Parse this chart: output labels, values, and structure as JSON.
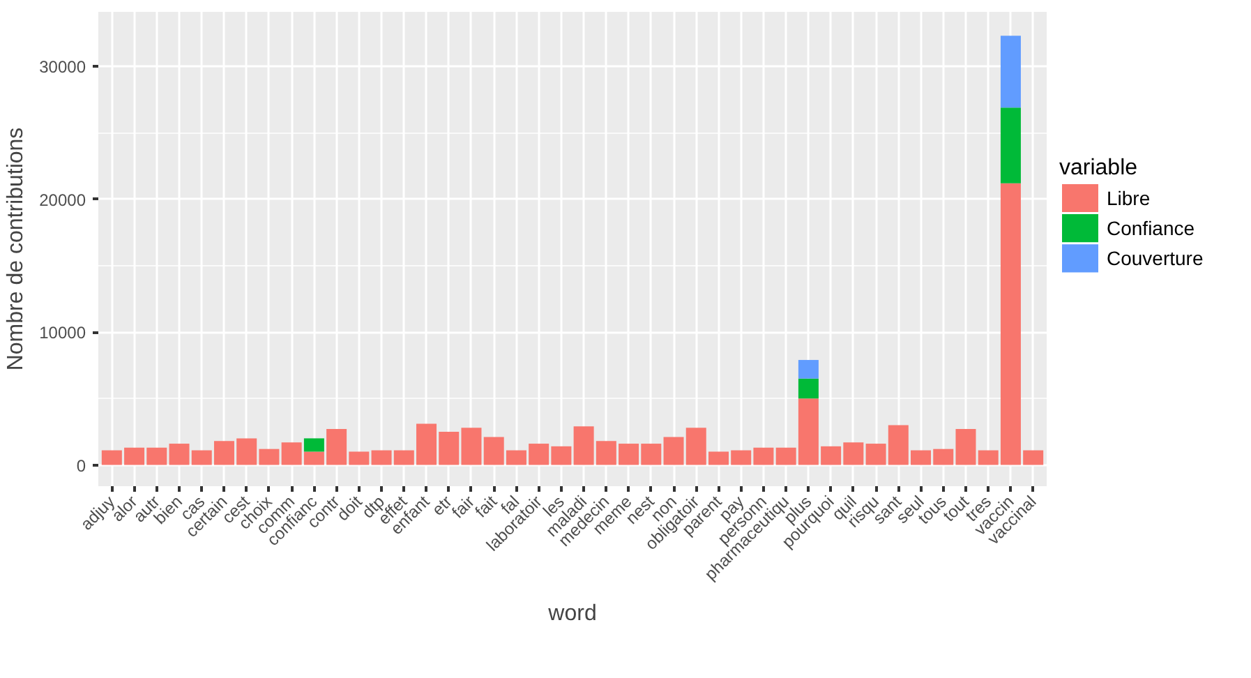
{
  "chart_data": {
    "type": "bar",
    "stacked": true,
    "xlabel": "word",
    "ylabel": "Nombre de contributions",
    "legend_title": "variable",
    "categories": [
      "adjuy",
      "alor",
      "autr",
      "bien",
      "cas",
      "certain",
      "cest",
      "choix",
      "comm",
      "confianc",
      "contr",
      "doit",
      "dtp",
      "effet",
      "enfant",
      "etr",
      "fair",
      "fait",
      "fal",
      "laboratoir",
      "les",
      "maladi",
      "medecin",
      "meme",
      "nest",
      "non",
      "obligatoir",
      "parent",
      "pay",
      "personn",
      "pharmaceutiqu",
      "plus",
      "pourquoi",
      "quil",
      "risqu",
      "sant",
      "seul",
      "tous",
      "tout",
      "tres",
      "vaccin",
      "vaccinal"
    ],
    "series": [
      {
        "name": "Libre",
        "color": "#f8766d",
        "values": [
          1100,
          1300,
          1300,
          1600,
          1100,
          1800,
          2000,
          1200,
          1700,
          1000,
          2700,
          1000,
          1100,
          1100,
          3100,
          2500,
          2800,
          2100,
          1100,
          1600,
          1400,
          2900,
          1800,
          1600,
          1600,
          2100,
          2800,
          1000,
          1100,
          1300,
          1300,
          5000,
          1400,
          1700,
          1600,
          3000,
          1100,
          1200,
          2700,
          1100,
          21200,
          1100
        ]
      },
      {
        "name": "Confiance",
        "color": "#00ba38",
        "values": [
          null,
          null,
          null,
          null,
          null,
          null,
          null,
          null,
          null,
          1000,
          null,
          null,
          null,
          null,
          null,
          null,
          null,
          null,
          null,
          null,
          null,
          null,
          null,
          null,
          null,
          null,
          null,
          null,
          null,
          null,
          null,
          1500,
          null,
          null,
          null,
          null,
          null,
          null,
          null,
          null,
          5700,
          null
        ]
      },
      {
        "name": "Couverture",
        "color": "#619cff",
        "values": [
          null,
          null,
          null,
          null,
          null,
          null,
          null,
          null,
          null,
          null,
          null,
          null,
          null,
          null,
          null,
          null,
          null,
          null,
          null,
          null,
          null,
          null,
          null,
          null,
          null,
          null,
          null,
          null,
          null,
          null,
          null,
          1400,
          null,
          null,
          null,
          null,
          null,
          null,
          null,
          null,
          5400,
          null
        ]
      }
    ],
    "ylim": [
      -1600,
      34100
    ],
    "yticks": [
      0,
      10000,
      20000,
      30000
    ],
    "grid": true,
    "legend": "right"
  }
}
